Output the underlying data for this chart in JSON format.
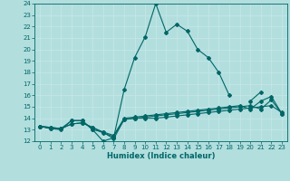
{
  "xlabel": "Humidex (Indice chaleur)",
  "x": [
    0,
    1,
    2,
    3,
    4,
    5,
    6,
    7,
    8,
    9,
    10,
    11,
    12,
    13,
    14,
    15,
    16,
    17,
    18,
    19,
    20,
    21,
    22,
    23
  ],
  "line1_a": {
    "x": [
      0,
      1,
      2,
      3,
      4,
      5,
      6,
      7,
      8,
      9,
      10,
      11,
      12,
      13,
      14,
      15,
      16,
      17,
      18
    ],
    "y": [
      13.3,
      13.1,
      13.1,
      13.8,
      13.8,
      13.0,
      12.0,
      12.3,
      16.5,
      19.3,
      21.1,
      24.0,
      21.5,
      22.2,
      21.6,
      20.0,
      19.3,
      18.0,
      16.0
    ]
  },
  "line1_b": {
    "x": [
      20,
      21
    ],
    "y": [
      15.5,
      16.3
    ]
  },
  "line2": {
    "x": [
      0,
      1,
      2,
      3,
      4,
      5,
      6,
      7,
      8,
      9,
      10,
      11,
      12,
      13,
      14,
      15,
      16,
      17,
      18,
      19,
      20,
      21,
      22,
      23
    ],
    "y": [
      13.3,
      13.1,
      13.0,
      13.8,
      13.8,
      13.0,
      12.8,
      12.2,
      13.9,
      14.0,
      14.0,
      14.0,
      14.1,
      14.2,
      14.3,
      14.4,
      14.5,
      14.6,
      14.7,
      14.8,
      14.9,
      15.0,
      15.1,
      14.5
    ]
  },
  "line3": {
    "x": [
      0,
      1,
      2,
      3,
      4,
      5,
      6,
      7,
      8,
      9,
      10,
      11,
      12,
      13,
      14,
      15,
      16,
      17,
      18,
      19,
      20,
      21,
      22,
      23
    ],
    "y": [
      13.3,
      13.2,
      13.1,
      13.5,
      13.6,
      13.2,
      12.7,
      12.4,
      13.9,
      14.0,
      14.1,
      14.2,
      14.3,
      14.4,
      14.5,
      14.6,
      14.7,
      14.8,
      14.9,
      15.0,
      15.1,
      14.8,
      15.6,
      14.4
    ]
  },
  "line4": {
    "x": [
      0,
      1,
      2,
      3,
      4,
      5,
      6,
      7,
      8,
      9,
      10,
      11,
      12,
      13,
      14,
      15,
      16,
      17,
      18,
      19,
      20,
      21,
      22,
      23
    ],
    "y": [
      13.3,
      13.2,
      13.1,
      13.5,
      13.6,
      13.2,
      12.8,
      12.5,
      14.0,
      14.1,
      14.2,
      14.3,
      14.4,
      14.5,
      14.6,
      14.7,
      14.8,
      14.9,
      15.0,
      15.1,
      14.8,
      15.5,
      15.9,
      14.4
    ]
  },
  "ylim": [
    12,
    24
  ],
  "xlim": [
    -0.5,
    23.5
  ],
  "yticks": [
    12,
    13,
    14,
    15,
    16,
    17,
    18,
    19,
    20,
    21,
    22,
    23,
    24
  ],
  "xticks": [
    0,
    1,
    2,
    3,
    4,
    5,
    6,
    7,
    8,
    9,
    10,
    11,
    12,
    13,
    14,
    15,
    16,
    17,
    18,
    19,
    20,
    21,
    22,
    23
  ],
  "line_color": "#006666",
  "bg_color": "#b2dede",
  "grid_color": "#c8e8e8",
  "tick_fontsize": 5.0,
  "xlabel_fontsize": 6.0,
  "linewidth": 0.8,
  "markersize": 2.0
}
